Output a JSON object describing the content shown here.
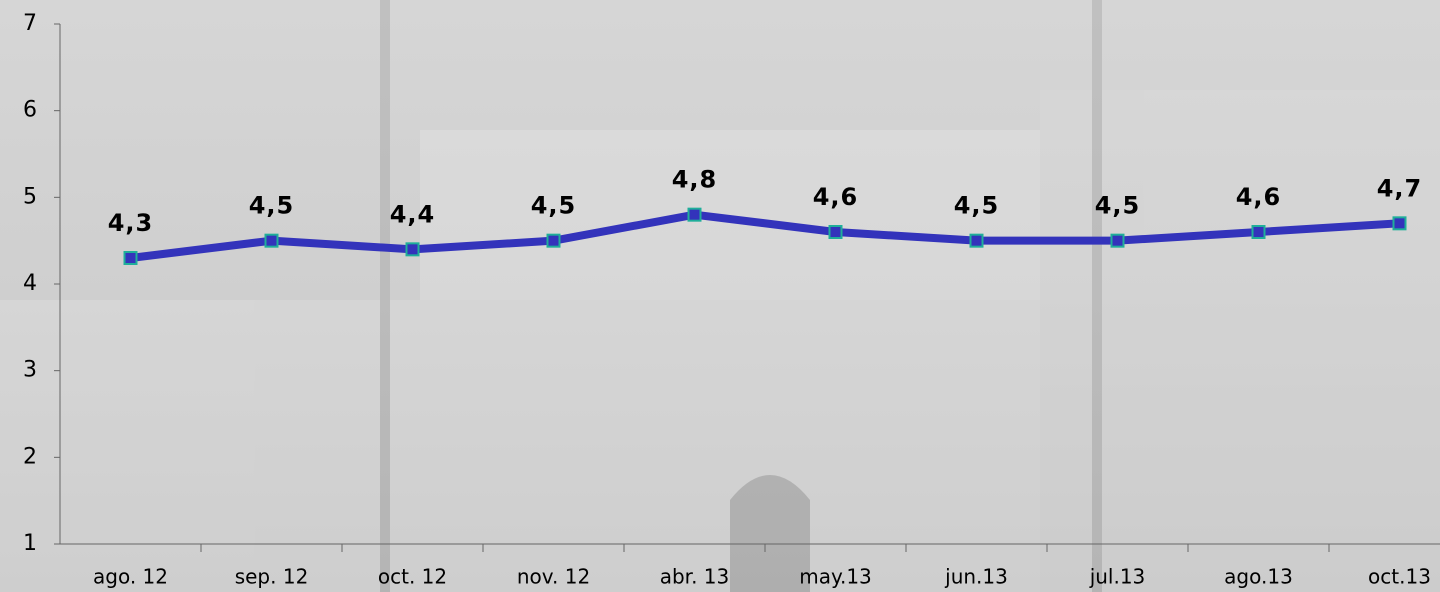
{
  "chart_data": {
    "type": "line",
    "categories": [
      "ago. 12",
      "sep. 12",
      "oct. 12",
      "nov. 12",
      "abr. 13",
      "may.13",
      "jun.13",
      "jul.13",
      "ago.13",
      "oct.13"
    ],
    "series": [
      {
        "name": null,
        "color": "#3333bb",
        "values": [
          4.3,
          4.5,
          4.4,
          4.5,
          4.8,
          4.6,
          4.5,
          4.5,
          4.6,
          4.7
        ],
        "value_labels": [
          "4,3",
          "4,5",
          "4,4",
          "4,5",
          "4,8",
          "4,6",
          "4,5",
          "4,5",
          "4,6",
          "4,7"
        ]
      }
    ],
    "marker_color": "#1fae9a",
    "ylim": [
      1,
      7
    ],
    "yticks": [
      1,
      2,
      3,
      4,
      5,
      6,
      7
    ]
  }
}
